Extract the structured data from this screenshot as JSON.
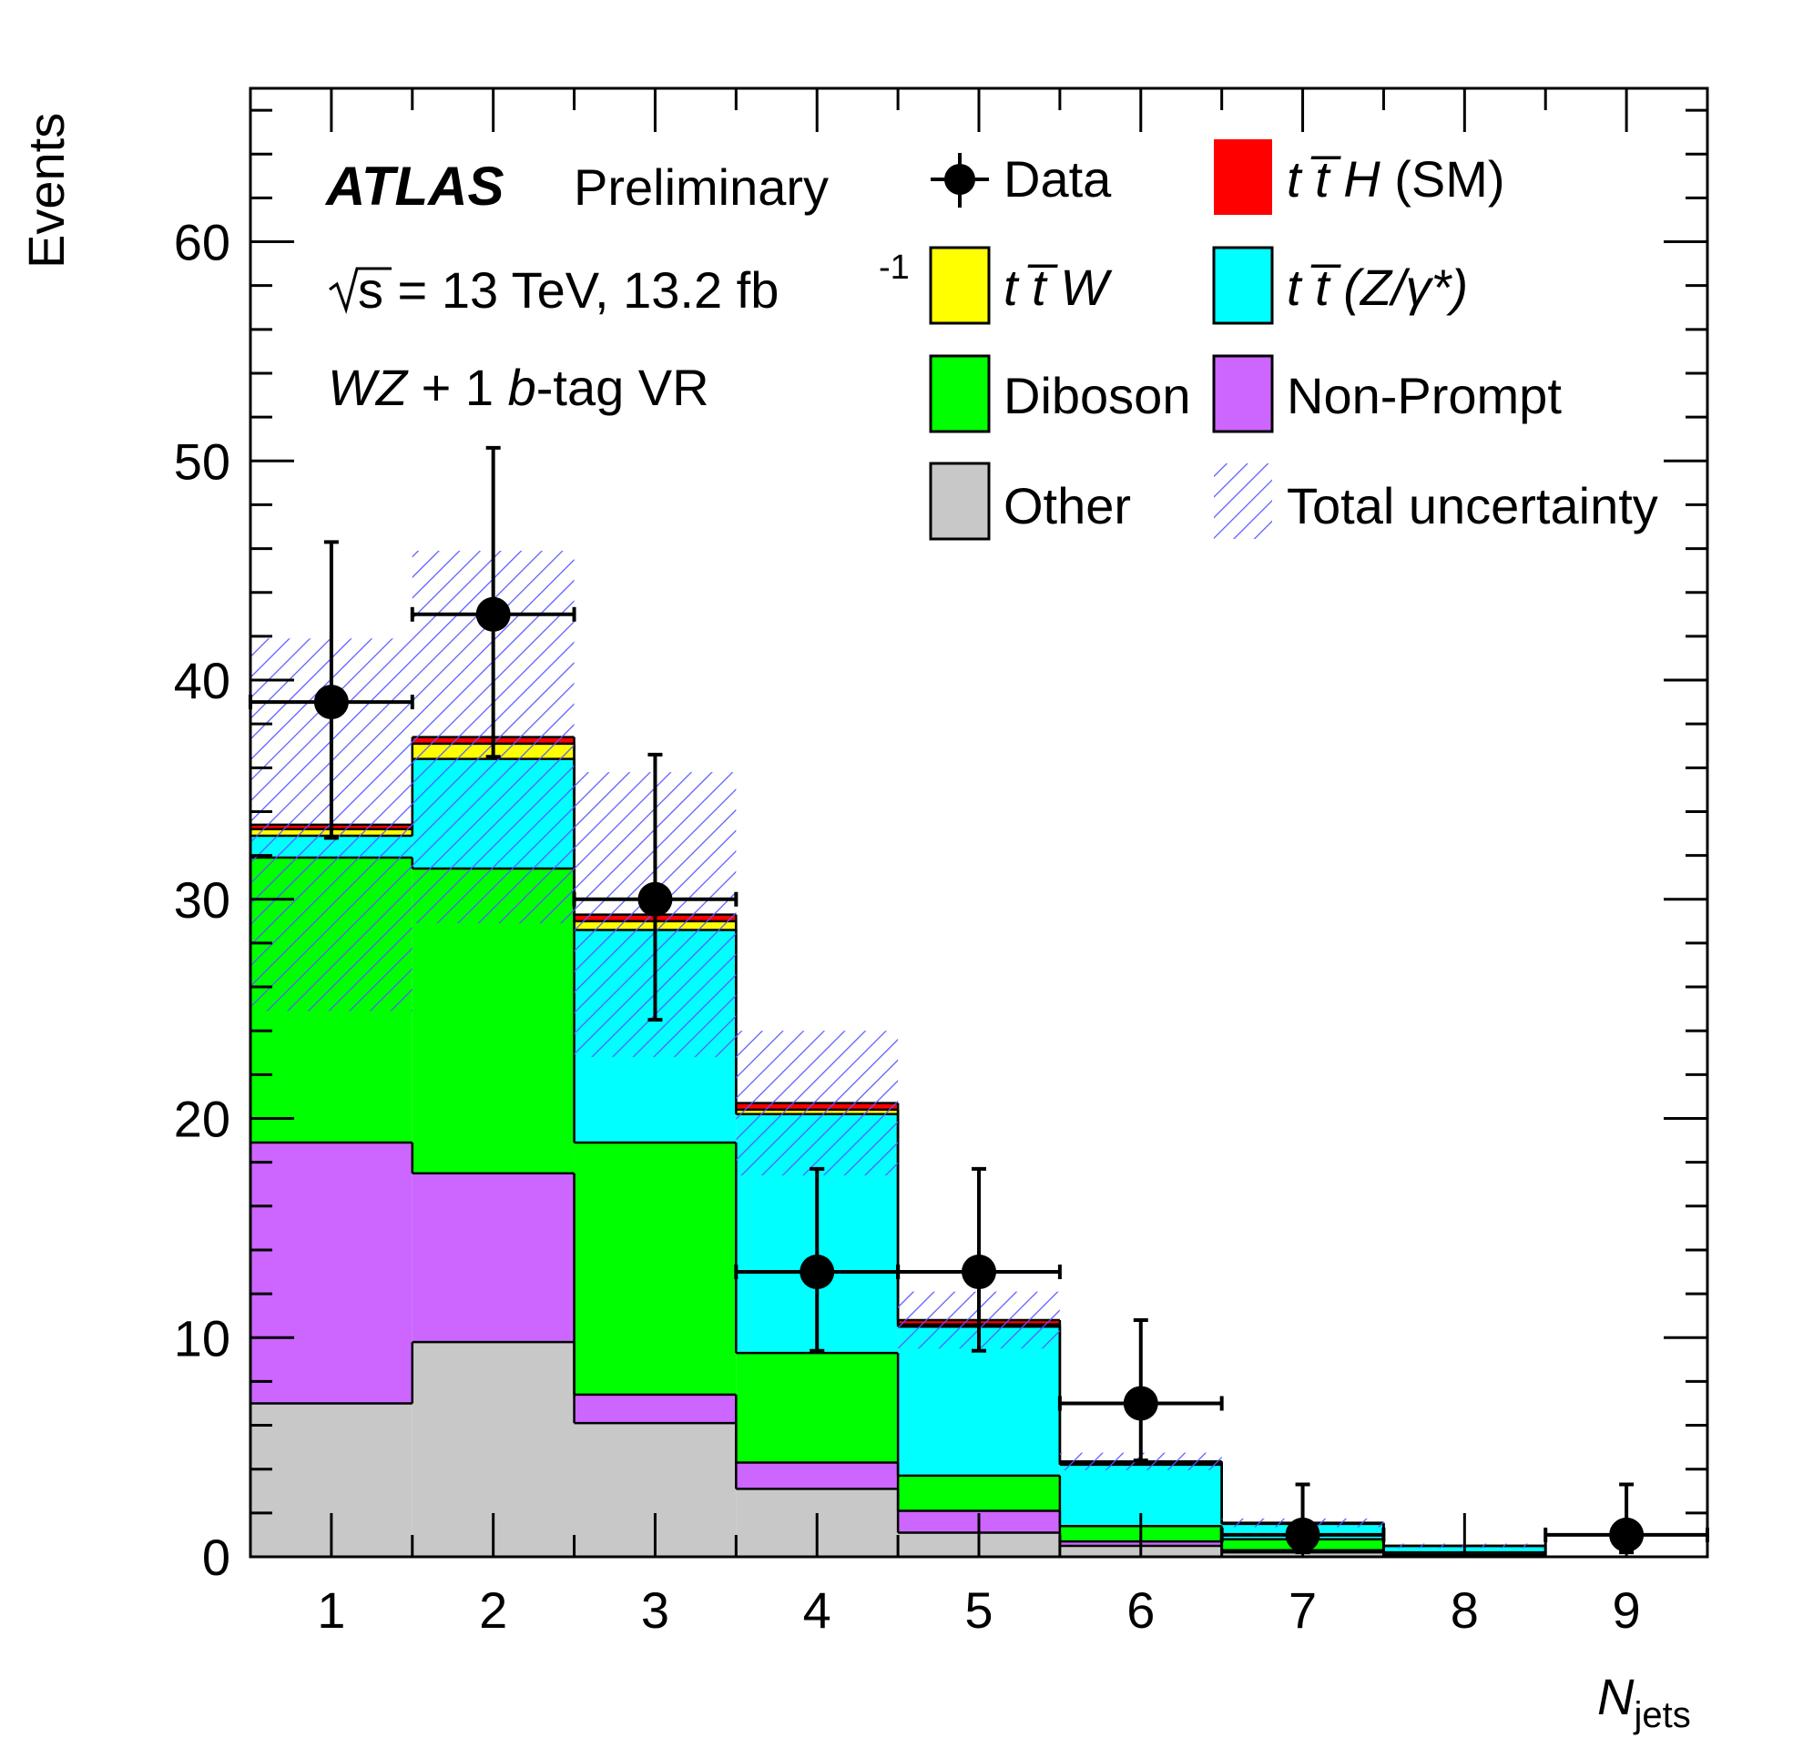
{
  "chart_data": {
    "type": "bar",
    "stacked": true,
    "title": "",
    "xlabel": "N",
    "xlabel_sub": "jets",
    "ylabel": "Events",
    "xlim": [
      0.5,
      9.5
    ],
    "ylim": [
      0,
      67
    ],
    "x": [
      1,
      2,
      3,
      4,
      5,
      6,
      7,
      8,
      9
    ],
    "x_tick_labels": [
      "1",
      "2",
      "3",
      "4",
      "5",
      "6",
      "7",
      "8",
      "9"
    ],
    "y_ticks": [
      0,
      10,
      20,
      30,
      40,
      50,
      60
    ],
    "y_tick_labels": [
      "0",
      "10",
      "20",
      "30",
      "40",
      "50",
      "60"
    ],
    "atlas_label": "ATLAS",
    "atlas_sublabel": "Preliminary",
    "energy_label": "s = 13 TeV, 13.2 fb",
    "energy_exponent": "-1",
    "region_label_wz": "WZ",
    "region_label_mid": " + 1 ",
    "region_label_b": "b",
    "region_label_rest": "-tag VR",
    "series": [
      {
        "name": "Other",
        "color": "#c8c8c8",
        "values": [
          7.0,
          9.8,
          6.1,
          3.1,
          1.1,
          0.5,
          0.2,
          0.1,
          0.0
        ]
      },
      {
        "name": "Non-Prompt",
        "color": "#cc66ff",
        "values": [
          11.9,
          7.7,
          1.3,
          1.2,
          1.0,
          0.2,
          0.1,
          0.0,
          0.0
        ]
      },
      {
        "name": "Diboson",
        "color": "#00ff00",
        "values": [
          13.0,
          13.9,
          11.5,
          5.0,
          1.6,
          0.7,
          0.5,
          0.1,
          0.0
        ]
      },
      {
        "name": "t̅tZ/γ*",
        "color": "#00ffff",
        "values": [
          1.0,
          5.0,
          9.7,
          10.9,
          6.8,
          2.8,
          0.7,
          0.3,
          0.0
        ]
      },
      {
        "name": "t̅tW",
        "color": "#ffff00",
        "values": [
          0.3,
          0.7,
          0.4,
          0.2,
          0.1,
          0.05,
          0.02,
          0.0,
          0.0
        ]
      },
      {
        "name": "t̅tH (SM)",
        "color": "#ff0000",
        "values": [
          0.2,
          0.3,
          0.3,
          0.3,
          0.2,
          0.1,
          0.03,
          0.0,
          0.0
        ]
      }
    ],
    "total_uncertainty": [
      8.5,
      8.5,
      6.5,
      3.3,
      1.3,
      0.4,
      0.2,
      0.1,
      0.0
    ],
    "data_points": [
      {
        "x": 1,
        "y": 39,
        "err_low": 6.2,
        "err_high": 7.3
      },
      {
        "x": 2,
        "y": 43,
        "err_low": 6.5,
        "err_high": 7.6
      },
      {
        "x": 3,
        "y": 30,
        "err_low": 5.5,
        "err_high": 6.6
      },
      {
        "x": 4,
        "y": 13,
        "err_low": 3.6,
        "err_high": 4.7
      },
      {
        "x": 5,
        "y": 13,
        "err_low": 3.6,
        "err_high": 4.7
      },
      {
        "x": 6,
        "y": 7,
        "err_low": 2.6,
        "err_high": 3.8
      },
      {
        "x": 7,
        "y": 1,
        "err_low": 0.8,
        "err_high": 2.3
      },
      {
        "x": 9,
        "y": 1,
        "err_low": 0.8,
        "err_high": 2.3
      }
    ],
    "legend": {
      "placement": "top-right",
      "entries": [
        {
          "key": "data",
          "label": "Data",
          "style": "marker"
        },
        {
          "key": "tth",
          "label_ital": "t t̅ H",
          "label_rest": " (SM)",
          "color": "#ff0000",
          "style": "box"
        },
        {
          "key": "ttw",
          "label_ital": "t t̅ W",
          "label_rest": "",
          "color": "#ffff00",
          "style": "box"
        },
        {
          "key": "ttz",
          "label_ital": "t t̅ (Z/γ*)",
          "label_rest": "",
          "color": "#00ffff",
          "style": "box"
        },
        {
          "key": "diboson",
          "label": "Diboson",
          "color": "#00ff00",
          "style": "box"
        },
        {
          "key": "nonprompt",
          "label": "Non-Prompt",
          "color": "#cc66ff",
          "style": "box"
        },
        {
          "key": "other",
          "label": "Other",
          "color": "#c8c8c8",
          "style": "box"
        },
        {
          "key": "unc",
          "label": "Total uncertainty",
          "color": "#5050ff",
          "style": "hatch"
        }
      ]
    }
  }
}
